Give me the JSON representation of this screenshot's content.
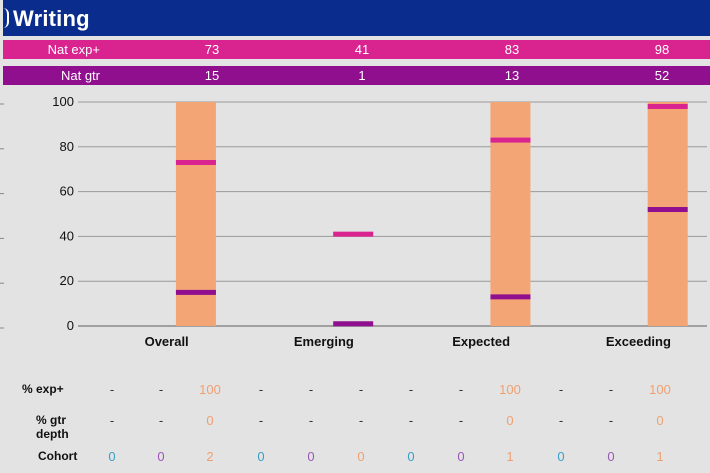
{
  "title": "Writing",
  "colors": {
    "header_bg": "#0a2c8c",
    "exp_strip": "#d9238f",
    "gtr_strip": "#8f0f8f",
    "bar": "#f4a576",
    "exp_marker": "#d9238f",
    "gtr_marker": "#8f0f8f",
    "gtr_text": "#9b59b6",
    "col_cyan": "#3aa0c8",
    "col_orange": "#f0a070"
  },
  "nat_exp": {
    "label": "Nat exp+",
    "values": [
      "73",
      "41",
      "83",
      "98"
    ]
  },
  "nat_gtr": {
    "label": "Nat gtr",
    "values": [
      "15",
      "1",
      "13",
      "52"
    ]
  },
  "chart_data": {
    "type": "bar",
    "categories": [
      "Overall",
      "Emerging",
      "Expected",
      "Exceeding"
    ],
    "values": [
      100,
      0,
      100,
      100
    ],
    "ylim": [
      0,
      100
    ],
    "yticks": [
      0,
      20,
      40,
      60,
      80,
      100
    ],
    "grid": true,
    "markers": {
      "nat_exp_plus": [
        73,
        41,
        83,
        98
      ],
      "nat_gtr": [
        15,
        1,
        13,
        52
      ]
    }
  },
  "table": {
    "rows": [
      {
        "label": "% exp+",
        "cells": [
          "-",
          "-",
          "100",
          "-",
          "-",
          "-",
          "-",
          "-",
          "100",
          "-",
          "-",
          "100"
        ]
      },
      {
        "label": "% gtr depth",
        "cells": [
          "-",
          "-",
          "0",
          "-",
          "-",
          "-",
          "-",
          "-",
          "0",
          "-",
          "-",
          "0"
        ]
      },
      {
        "label": "Cohort",
        "cells": [
          "0",
          "0",
          "2",
          "0",
          "0",
          "0",
          "0",
          "0",
          "1",
          "0",
          "0",
          "1"
        ]
      }
    ]
  }
}
